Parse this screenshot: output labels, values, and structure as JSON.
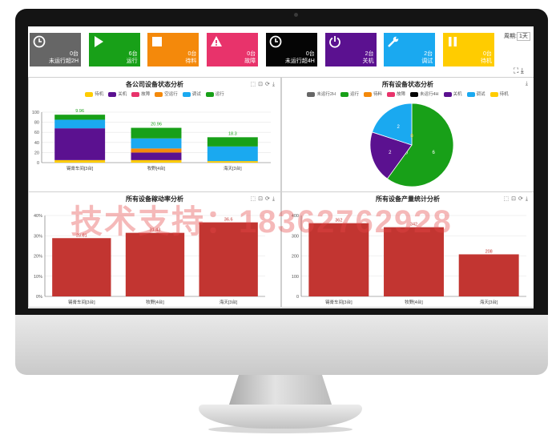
{
  "tiles": [
    {
      "count": "0台",
      "label": "未运行超2H",
      "color": "#666666",
      "icon": "clock-icon"
    },
    {
      "count": "6台",
      "label": "运行",
      "color": "#18a018",
      "icon": "play-icon"
    },
    {
      "count": "0台",
      "label": "待料",
      "color": "#f4890b",
      "icon": "stop-square-icon"
    },
    {
      "count": "0台",
      "label": "故障",
      "color": "#e8336b",
      "icon": "alert-icon"
    },
    {
      "count": "0台",
      "label": "未运行超4H",
      "color": "#050505",
      "icon": "clock-icon"
    },
    {
      "count": "2台",
      "label": "关机",
      "color": "#5b1190",
      "icon": "power-icon"
    },
    {
      "count": "2台",
      "label": "调试",
      "color": "#1aa9f0",
      "icon": "wrench-icon"
    },
    {
      "count": "0台",
      "label": "待机",
      "color": "#ffcc00",
      "icon": "pause-icon"
    }
  ],
  "period": {
    "label": "周期:",
    "value": "1天"
  },
  "watermark": "技术支持：18362762928",
  "panels": {
    "company_status": {
      "title": "各公司设备状态分析"
    },
    "all_status": {
      "title": "所有设备状态分析"
    },
    "utilization": {
      "title": "所有设备稼动率分析"
    },
    "output": {
      "title": "所有设备产量统计分析"
    }
  },
  "chart_data": [
    {
      "type": "bar",
      "title": "各公司设备状态分析",
      "stacked": true,
      "legend": [
        "待机",
        "关机",
        "故障",
        "空运行",
        "调试",
        "运行"
      ],
      "legend_colors": [
        "#ffcc00",
        "#5b1190",
        "#e8336b",
        "#f4890b",
        "#1aa9f0",
        "#18a018"
      ],
      "categories": [
        "锡膏车间[3台]",
        "牧野[4台]",
        "海天[3台]"
      ],
      "series": [
        {
          "name": "待机",
          "values": [
            5,
            5,
            3
          ]
        },
        {
          "name": "关机",
          "values": [
            63,
            15,
            0
          ]
        },
        {
          "name": "故障",
          "values": [
            0,
            0,
            0
          ]
        },
        {
          "name": "空运行",
          "values": [
            0,
            8,
            0
          ]
        },
        {
          "name": "调试",
          "values": [
            17,
            20,
            29
          ]
        },
        {
          "name": "运行",
          "values": [
            9.96,
            20.96,
            18.3
          ]
        }
      ],
      "data_labels": [
        "9.96",
        "20.96",
        "18.3"
      ],
      "yticks": [
        "0",
        "20",
        "40",
        "60",
        "80",
        "100"
      ],
      "ylim": [
        0,
        100
      ]
    },
    {
      "type": "pie",
      "title": "所有设备状态分析",
      "legend": [
        "未运行2H",
        "运行",
        "待料",
        "故障",
        "未运行4H",
        "关机",
        "调试",
        "待机"
      ],
      "legend_colors": [
        "#666666",
        "#18a018",
        "#f4890b",
        "#e8336b",
        "#050505",
        "#5b1190",
        "#1aa9f0",
        "#ffcc00"
      ],
      "slices": [
        {
          "name": "运行",
          "value": 6,
          "label": "6",
          "color": "#18a018"
        },
        {
          "name": "待料",
          "value": 0,
          "label": "0",
          "color": "#f4890b"
        },
        {
          "name": "关机",
          "value": 2,
          "label": "2",
          "color": "#5b1190"
        },
        {
          "name": "调试",
          "value": 2,
          "label": "2",
          "color": "#1aa9f0"
        },
        {
          "name": "待机",
          "value": 0,
          "label": "0",
          "color": "#ffcc00"
        }
      ]
    },
    {
      "type": "bar",
      "title": "所有设备稼动率分析",
      "categories": [
        "锡膏车间[3台]",
        "牧野[4台]",
        "海天[3台]"
      ],
      "values": [
        28.81,
        31.43,
        36.6
      ],
      "data_labels": [
        "28.81",
        "31.43",
        "36.6"
      ],
      "yticks": [
        "0%",
        "10%",
        "20%",
        "30%",
        "40%"
      ],
      "ylim": [
        0,
        40
      ],
      "color": "#c23531"
    },
    {
      "type": "bar",
      "title": "所有设备产量统计分析",
      "categories": [
        "锡膏车间[3台]",
        "牧野[4台]",
        "海天[3台]"
      ],
      "values": [
        362,
        342,
        208
      ],
      "data_labels": [
        "362",
        "342",
        "208"
      ],
      "yticks": [
        "0",
        "100",
        "200",
        "300",
        "400"
      ],
      "ylim": [
        0,
        400
      ],
      "color": "#c23531"
    }
  ]
}
